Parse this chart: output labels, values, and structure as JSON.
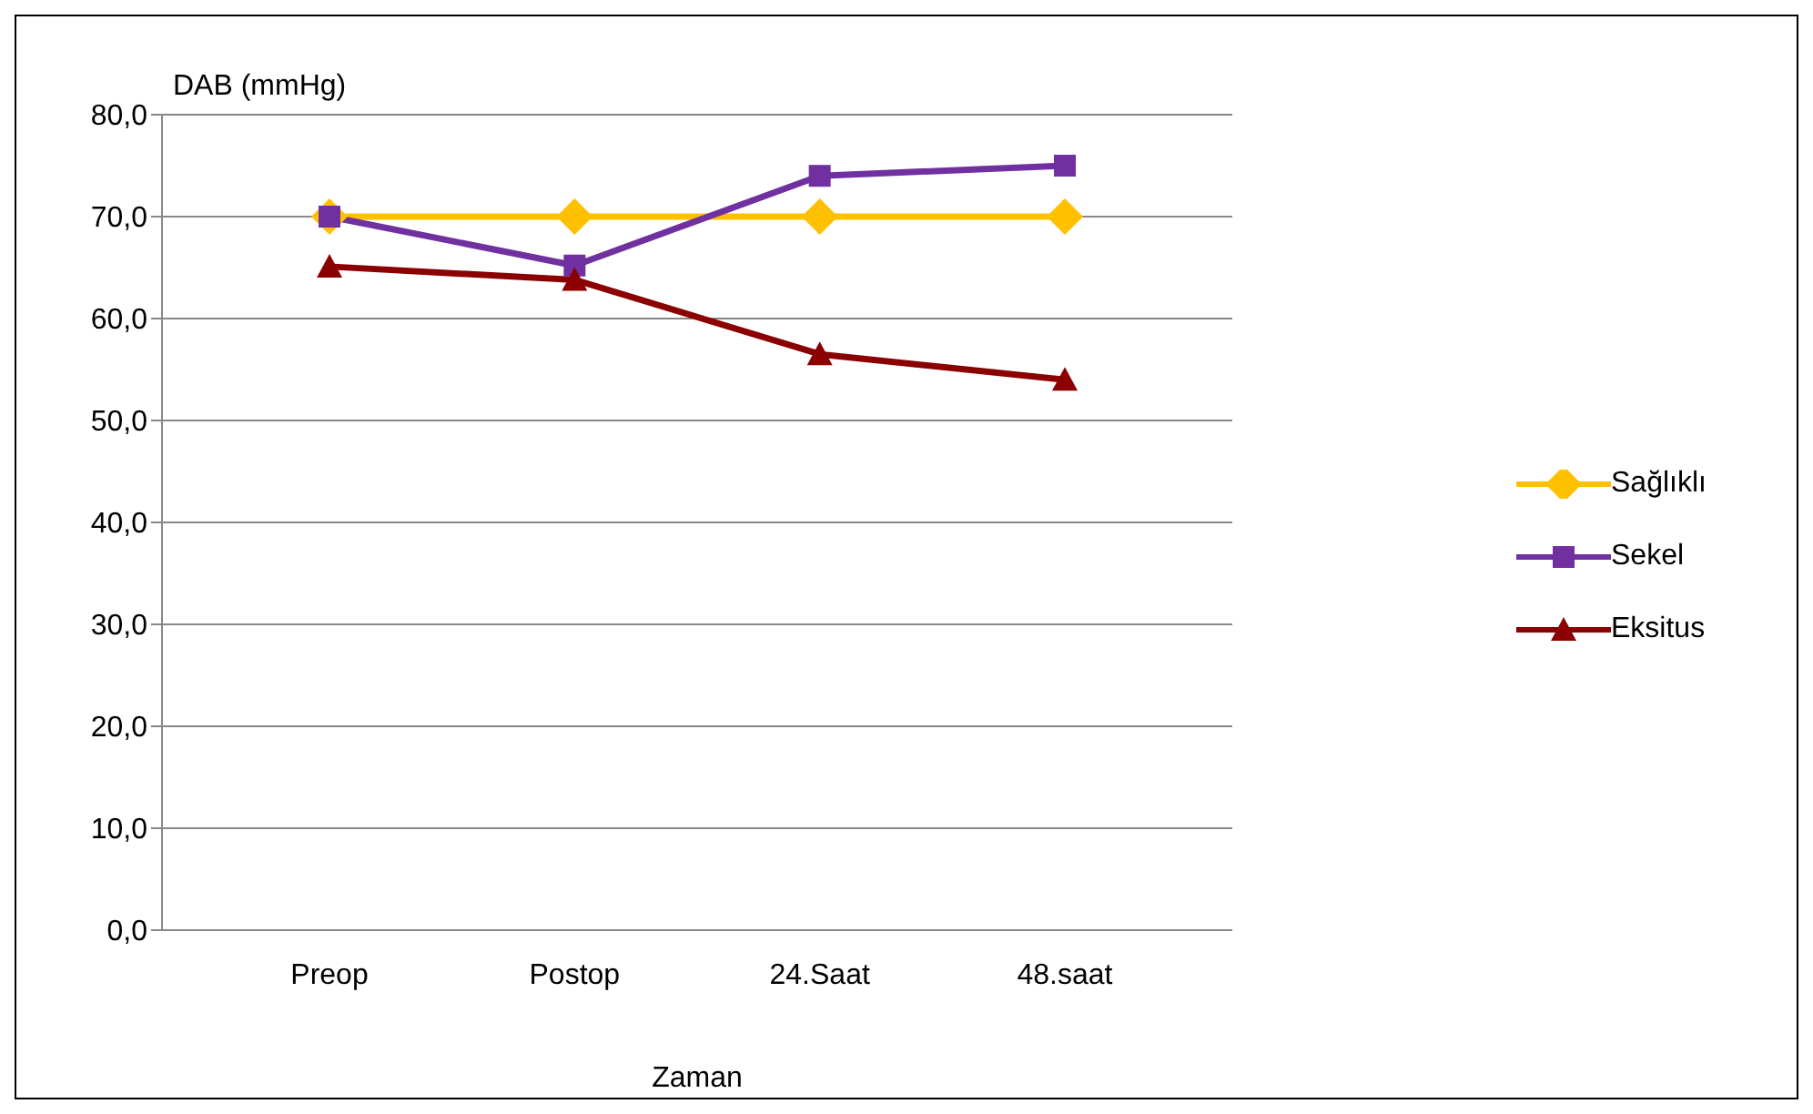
{
  "chart_data": {
    "type": "line",
    "ylabel": "DAB (mmHg)",
    "xlabel": "Zaman",
    "categories": [
      "Preop",
      "Postop",
      "24.Saat",
      "48.saat"
    ],
    "series": [
      {
        "name": "Sağlıklı",
        "color": "#ffc000",
        "marker": "diamond",
        "values": [
          70.0,
          70.0,
          70.0,
          70.0
        ]
      },
      {
        "name": "Sekel",
        "color": "#7030a0",
        "marker": "square",
        "values": [
          70.0,
          65.2,
          74.0,
          75.0
        ]
      },
      {
        "name": "Eksitus",
        "color": "#8b0000",
        "marker": "triangle",
        "values": [
          65.1,
          63.8,
          56.5,
          54.0
        ]
      }
    ],
    "ylim": [
      0,
      80
    ],
    "yticks": [
      {
        "value": 0,
        "label": "0,0"
      },
      {
        "value": 10,
        "label": "10,0"
      },
      {
        "value": 20,
        "label": "20,0"
      },
      {
        "value": 30,
        "label": "30,0"
      },
      {
        "value": 40,
        "label": "40,0"
      },
      {
        "value": 50,
        "label": "50,0"
      },
      {
        "value": 60,
        "label": "60,0"
      },
      {
        "value": 70,
        "label": "70,0"
      },
      {
        "value": 80,
        "label": "80,0"
      }
    ],
    "grid": "y",
    "legend": "right",
    "line_style": "solid"
  }
}
